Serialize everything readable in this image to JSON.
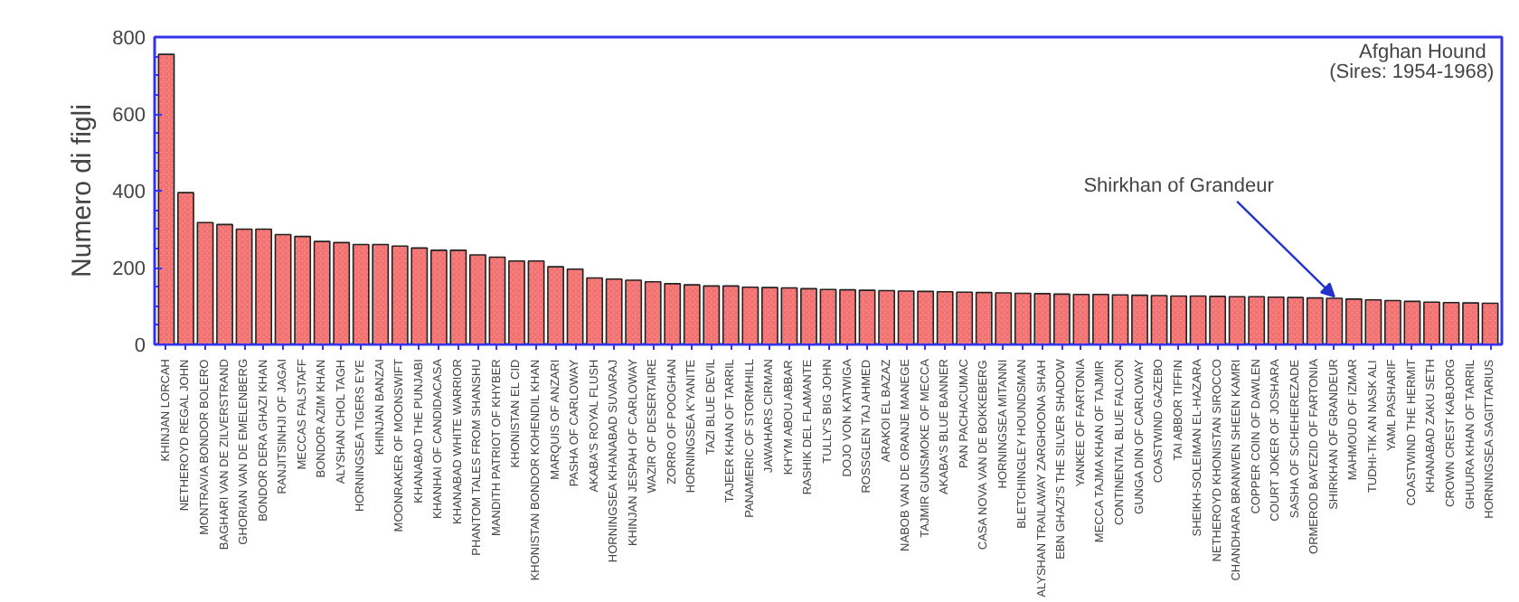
{
  "chart_data": {
    "type": "bar",
    "title": "Afghan Hound",
    "subtitle": "(Sires: 1954-1968)",
    "ylabel": "Numero di figli",
    "categories": [
      "KHINJAN LORCAH",
      "NETHEROYD REGAL JOHN",
      "MONTRAVIA BONDOR BOLERO",
      "BAGHARI VAN DE ZILVERSTRAND",
      "GHORIAN VAN DE EMELENBERG",
      "BONDOR DERA GHAZI KHAN",
      "RANJITSINHJI OF JAGAI",
      "MECCAS FALSTAFF",
      "BONDOR AZIM KHAN",
      "ALYSHAN CHOL TAGH",
      "HORNINGSEA TIGERS EYE",
      "KHINJAN BANZAI",
      "MOONRAKER OF MOONSWIFT",
      "KHANABAD THE PUNJABI",
      "KHANHAI OF CANDIDACASA",
      "KHANABAD WHITE WARRIOR",
      "PHANTOM TALES FROM SHANSHU",
      "MANDITH PATRIOT OF KHYBER",
      "KHONISTAN EL CID",
      "KHONISTAN BONDOR KOHENDIL KHAN",
      "MARQUIS OF ANZARI",
      "PASHA OF CARLOWAY",
      "AKABA'S ROYAL FLUSH",
      "HORNINGSEA KHANABAD SUVARAJ",
      "KHINJAN JESPAH OF CARLOWAY",
      "WAZIR OF DESERTAIRE",
      "ZORRO OF POOGHAN",
      "HORNINGSEA K'YANITE",
      "TAZI BLUE DEVIL",
      "TAJEER KHAN OF TARRIL",
      "PANAMERIC OF STORMHILL",
      "JAWAHARS CIRMAN",
      "KH'YM ABOU ABBAR",
      "RASHIK DEL FLAMANTE",
      "TULLY'S BIG JOHN",
      "DOJO VON KATWIGA",
      "ROSSGLEN TAJ AHMED",
      "ARAKOI EL BAZAZ",
      "NABOB VAN DE ORANJE MANEGE",
      "TAJMIR GUNSMOKE OF MECCA",
      "AKABA'S BLUE BANNER",
      "PAN PACHACUMAC",
      "CASA NOVA VAN DE BOKKEBERG",
      "HORNINGSEA MITANNI",
      "BLETCHINGLEY HOUNDSMAN",
      "ALYSHAN TRAILAWAY ZARGHOONA SHAH",
      "EBN GHAZI'S THE SILVER SHADOW",
      "YANKEE OF FARTONIA",
      "MECCA TAJMA KHAN OF TAJMIR",
      "CONTINENTAL BLUE FALCON",
      "GUNGA DIN OF CARLOWAY",
      "COASTWIND GAZEBO",
      "TAI ABBOR TIFFIN",
      "SHEIKH-SOLEIMAN EL-HAZARA",
      "NETHEROYD KHONISTAN SIROCCO",
      "CHANDHARA BRANWEN SHEEN KAMRI",
      "COPPER COIN OF DAWLEN",
      "COURT JOKER OF JOSHARA",
      "SASHA OF SCHEHEREZADE",
      "ORMEROD BAYEZID OF FARTONIA",
      "SHIRKHAN OF GRANDEUR",
      "MAHMOUD OF IZMAR",
      "TUDHI-TIK AN NASK ALI",
      "YAML PASHARIF",
      "COASTWIND THE HERMIT",
      "KHANABAD ZAKU SETH",
      "CROWN CREST KABJORG",
      "GHUURA KHAN OF TARRIL",
      "HORNINGSEA SAGITTARIUS"
    ],
    "values": [
      755,
      395,
      317,
      312,
      300,
      300,
      286,
      281,
      268,
      265,
      260,
      260,
      256,
      251,
      245,
      245,
      233,
      227,
      217,
      217,
      202,
      196,
      173,
      170,
      167,
      163,
      158,
      155,
      152,
      152,
      149,
      148,
      147,
      145,
      143,
      142,
      141,
      140,
      139,
      138,
      137,
      136,
      135,
      134,
      133,
      132,
      131,
      130,
      130,
      129,
      128,
      127,
      126,
      126,
      125,
      124,
      124,
      123,
      122,
      121,
      120,
      118,
      116,
      114,
      112,
      110,
      109,
      108,
      107
    ],
    "color": "#ff7f7f",
    "ylim": [
      0,
      800
    ],
    "yticks": [
      0,
      200,
      400,
      600,
      800
    ],
    "grid": false,
    "annotations": [
      {
        "text": "Shirkhan of Grandeur",
        "x": "SHIRKHAN OF GRANDEUR",
        "y": 120
      }
    ]
  }
}
